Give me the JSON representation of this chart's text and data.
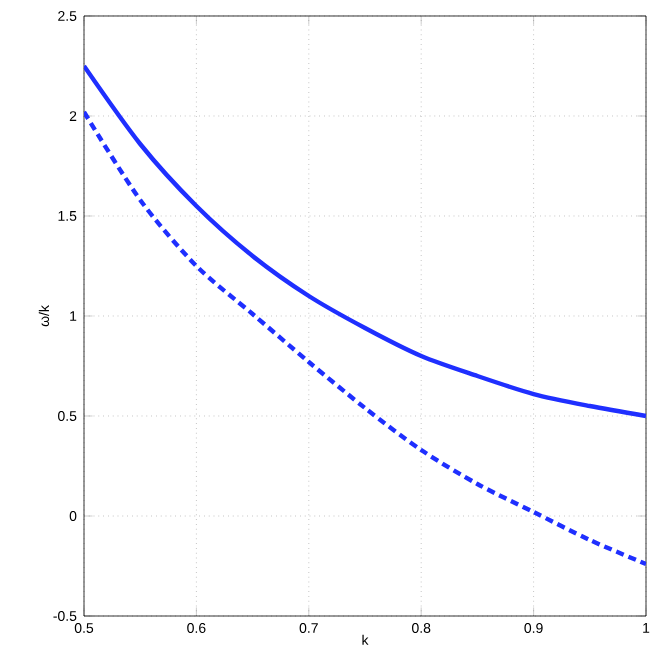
{
  "chart_data": {
    "type": "line",
    "xlabel": "k",
    "ylabel": "ω/k",
    "xlim": [
      0.5,
      1
    ],
    "ylim": [
      -0.5,
      2.5
    ],
    "xticks": [
      0.5,
      0.6,
      0.7,
      0.8,
      0.9,
      1
    ],
    "yticks": [
      -0.5,
      0,
      0.5,
      1,
      1.5,
      2,
      2.5
    ],
    "grid": true,
    "x": [
      0.5,
      0.55,
      0.6,
      0.65,
      0.7,
      0.75,
      0.8,
      0.85,
      0.9,
      0.95,
      1
    ],
    "series": [
      {
        "color": "#1f2fff",
        "line_style": "solid",
        "values": [
          2.25,
          1.86,
          1.55,
          1.3,
          1.1,
          0.94,
          0.8,
          0.7,
          0.61,
          0.55,
          0.5
        ]
      },
      {
        "color": "#1f2fff",
        "line_style": "dashed",
        "values": [
          2.02,
          1.58,
          1.25,
          1.01,
          0.77,
          0.54,
          0.33,
          0.16,
          0.02,
          -0.12,
          -0.24
        ]
      }
    ]
  }
}
